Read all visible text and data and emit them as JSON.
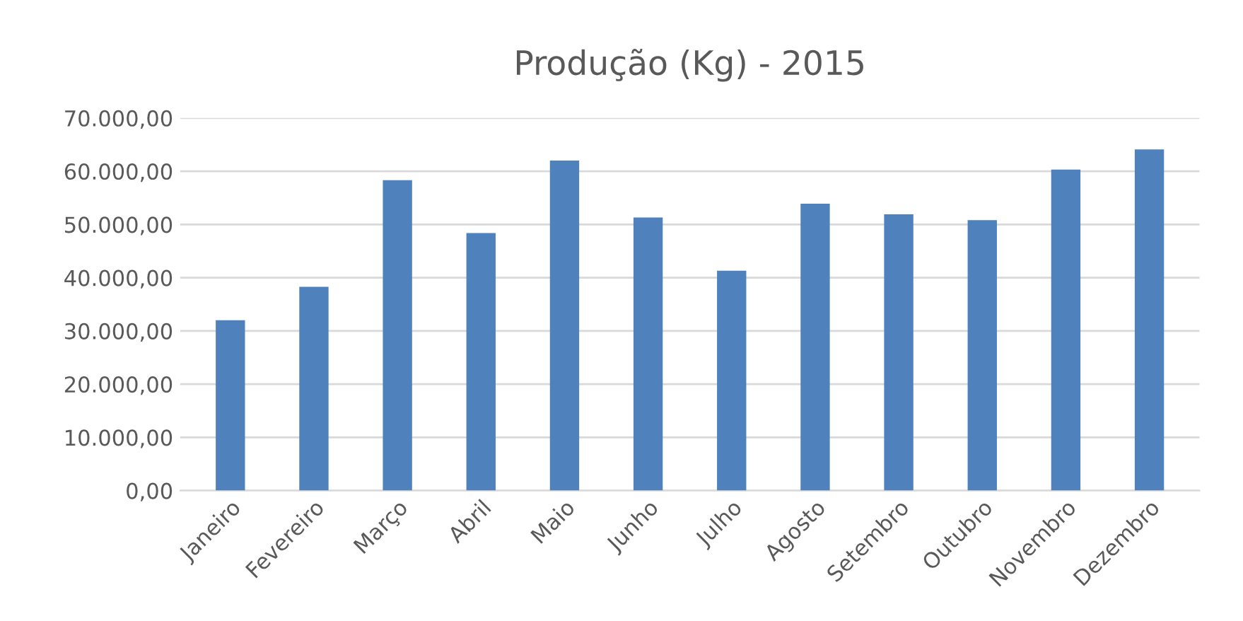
{
  "chart_data": {
    "type": "bar",
    "title": "Produção (Kg) - 2015",
    "categories": [
      "Janeiro",
      "Fevereiro",
      "Março",
      "Abril",
      "Maio",
      "Junho",
      "Julho",
      "Agosto",
      "Setembro",
      "Outubro",
      "Novembro",
      "Dezembro"
    ],
    "values": [
      32000,
      38300,
      58300,
      48400,
      62000,
      51300,
      41300,
      53900,
      51900,
      50800,
      60300,
      64100
    ],
    "color": "#4f81bd",
    "ylim": [
      0,
      70000
    ],
    "yticks": [
      {
        "value": 0,
        "label": "0,00"
      },
      {
        "value": 10000,
        "label": "10.000,00"
      },
      {
        "value": 20000,
        "label": "20.000,00"
      },
      {
        "value": 30000,
        "label": "30.000,00"
      },
      {
        "value": 40000,
        "label": "40.000,00"
      },
      {
        "value": 50000,
        "label": "50.000,00"
      },
      {
        "value": 60000,
        "label": "60.000,00"
      },
      {
        "value": 70000,
        "label": "70.000,00"
      }
    ],
    "grid": "y"
  }
}
